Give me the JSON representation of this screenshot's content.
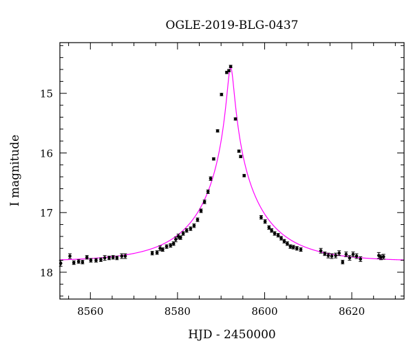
{
  "chart_data": {
    "type": "scatter",
    "title": "OGLE-2019-BLG-0437",
    "xlabel": "HJD - 2450000",
    "ylabel": "I magnitude",
    "xlim": [
      8553,
      8632
    ],
    "ylim": [
      18.45,
      14.15
    ],
    "y_inverted": true,
    "x_ticks": [
      8560,
      8580,
      8600,
      8620
    ],
    "y_ticks": [
      15,
      16,
      17,
      18
    ],
    "grid": false,
    "colors": {
      "points": "#000000",
      "model": "#ff00ff",
      "axes": "#000000"
    },
    "series": [
      {
        "kind": "points_with_errorbars",
        "x": [
          8553.2,
          8555.3,
          8556.2,
          8557.3,
          8558.2,
          8559.2,
          8560.1,
          8561.3,
          8562.4,
          8563.3,
          8564.3,
          8565.2,
          8566.1,
          8567.2,
          8568.0,
          8574.2,
          8575.3,
          8576.0,
          8576.6,
          8577.5,
          8578.4,
          8579.1,
          8579.6,
          8580.2,
          8580.7,
          8581.3,
          8582.1,
          8583.0,
          8583.8,
          8584.6,
          8585.4,
          8586.2,
          8587.0,
          8587.6,
          8588.3,
          8589.2,
          8590.1,
          8591.3,
          8591.8,
          8592.2,
          8593.3,
          8594.1,
          8594.5,
          8595.3,
          8599.2,
          8600.1,
          8601.0,
          8601.6,
          8602.3,
          8603.1,
          8603.8,
          8604.5,
          8605.2,
          8605.9,
          8606.6,
          8607.4,
          8608.3,
          8612.9,
          8613.8,
          8614.6,
          8615.4,
          8616.3,
          8617.1,
          8617.9,
          8618.7,
          8619.5,
          8620.3,
          8621.1,
          8622.0,
          8626.2,
          8626.7,
          8627.3
        ],
        "y": [
          17.85,
          17.73,
          17.84,
          17.82,
          17.83,
          17.75,
          17.8,
          17.8,
          17.79,
          17.76,
          17.76,
          17.75,
          17.76,
          17.73,
          17.73,
          17.68,
          17.67,
          17.6,
          17.62,
          17.57,
          17.55,
          17.52,
          17.45,
          17.4,
          17.42,
          17.35,
          17.3,
          17.27,
          17.22,
          17.12,
          16.97,
          16.82,
          16.65,
          16.43,
          16.1,
          15.63,
          15.02,
          14.65,
          14.62,
          14.55,
          15.43,
          15.97,
          16.06,
          16.38,
          17.08,
          17.15,
          17.25,
          17.3,
          17.35,
          17.38,
          17.43,
          17.48,
          17.52,
          17.57,
          17.58,
          17.6,
          17.62,
          17.64,
          17.69,
          17.72,
          17.73,
          17.72,
          17.68,
          17.83,
          17.7,
          17.76,
          17.7,
          17.73,
          17.78,
          17.72,
          17.75,
          17.74
        ],
        "yerr": [
          0.05,
          0.04,
          0.03,
          0.03,
          0.03,
          0.03,
          0.03,
          0.03,
          0.03,
          0.04,
          0.03,
          0.03,
          0.03,
          0.04,
          0.04,
          0.03,
          0.03,
          0.04,
          0.03,
          0.03,
          0.03,
          0.03,
          0.04,
          0.04,
          0.03,
          0.03,
          0.03,
          0.03,
          0.03,
          0.03,
          0.03,
          0.03,
          0.03,
          0.03,
          0.02,
          0.02,
          0.02,
          0.02,
          0.02,
          0.02,
          0.02,
          0.02,
          0.02,
          0.02,
          0.03,
          0.03,
          0.03,
          0.03,
          0.03,
          0.03,
          0.03,
          0.03,
          0.03,
          0.03,
          0.03,
          0.03,
          0.03,
          0.04,
          0.03,
          0.04,
          0.04,
          0.04,
          0.04,
          0.03,
          0.04,
          0.04,
          0.04,
          0.04,
          0.04,
          0.05,
          0.04,
          0.04
        ]
      },
      {
        "kind": "model_curve",
        "model": "pspl",
        "t0": 8592.2,
        "u0": 0.05,
        "tE": 14.8,
        "baseline": 17.82
      }
    ]
  }
}
